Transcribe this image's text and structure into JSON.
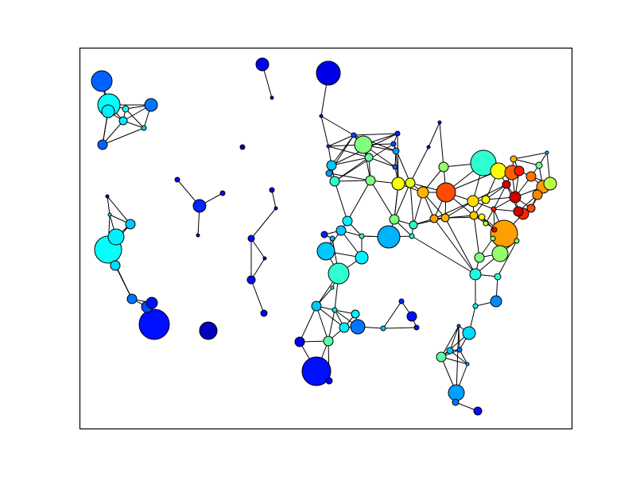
{
  "diagram": {
    "type": "network-graph",
    "colormap": "jet",
    "edge_color": "#000000",
    "node_outline_color": "#000000",
    "axes_frame": true,
    "ticks": false
  }
}
